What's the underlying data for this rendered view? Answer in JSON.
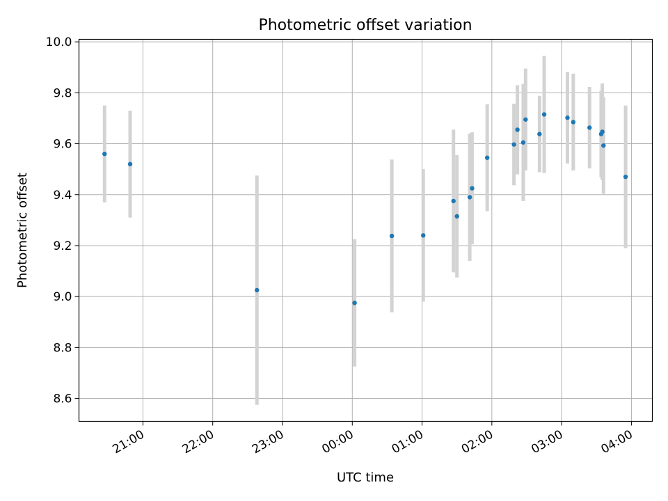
{
  "chart_data": {
    "type": "scatter",
    "title": "Photometric offset variation",
    "xlabel": "UTC time",
    "ylabel": "Photometric offset",
    "xlim": [
      "2000-01-01T20:05",
      "2000-01-02T04:18"
    ],
    "ylim": [
      8.51,
      10.01
    ],
    "x_ticks": [
      "21:00",
      "22:00",
      "23:00",
      "00:00",
      "01:00",
      "02:00",
      "03:00",
      "04:00"
    ],
    "y_ticks": [
      "8.6",
      "8.8",
      "9.0",
      "9.2",
      "9.4",
      "9.6",
      "9.8",
      "10.0"
    ],
    "grid": true,
    "series": [
      {
        "marker_color": "#1f77b4",
        "errorbar_color": "#d3d3d3",
        "points": [
          {
            "x": "2000-01-01T20:27",
            "y": 9.56,
            "yerr": 0.19
          },
          {
            "x": "2000-01-01T20:49",
            "y": 9.52,
            "yerr": 0.21
          },
          {
            "x": "2000-01-01T22:38",
            "y": 9.025,
            "yerr": 0.45
          },
          {
            "x": "2000-01-02T00:02",
            "y": 8.975,
            "yerr": 0.25
          },
          {
            "x": "2000-01-02T00:34",
            "y": 9.238,
            "yerr": 0.3
          },
          {
            "x": "2000-01-02T01:01",
            "y": 9.24,
            "yerr": 0.26
          },
          {
            "x": "2000-01-02T01:27",
            "y": 9.375,
            "yerr": 0.28
          },
          {
            "x": "2000-01-02T01:30",
            "y": 9.315,
            "yerr": 0.24
          },
          {
            "x": "2000-01-02T01:41",
            "y": 9.39,
            "yerr": 0.25
          },
          {
            "x": "2000-01-02T01:43",
            "y": 9.425,
            "yerr": 0.22
          },
          {
            "x": "2000-01-02T01:56",
            "y": 9.545,
            "yerr": 0.21
          },
          {
            "x": "2000-01-02T02:19",
            "y": 9.597,
            "yerr": 0.16
          },
          {
            "x": "2000-01-02T02:22",
            "y": 9.655,
            "yerr": 0.175
          },
          {
            "x": "2000-01-02T02:27",
            "y": 9.605,
            "yerr": 0.23
          },
          {
            "x": "2000-01-02T02:29",
            "y": 9.695,
            "yerr": 0.2
          },
          {
            "x": "2000-01-02T02:41",
            "y": 9.638,
            "yerr": 0.15
          },
          {
            "x": "2000-01-02T02:45",
            "y": 9.715,
            "yerr": 0.23
          },
          {
            "x": "2000-01-02T03:05",
            "y": 9.702,
            "yerr": 0.18
          },
          {
            "x": "2000-01-02T03:10",
            "y": 9.685,
            "yerr": 0.19
          },
          {
            "x": "2000-01-02T03:24",
            "y": 9.663,
            "yerr": 0.16
          },
          {
            "x": "2000-01-02T03:34",
            "y": 9.638,
            "yerr": 0.17
          },
          {
            "x": "2000-01-02T03:35",
            "y": 9.647,
            "yerr": 0.19
          },
          {
            "x": "2000-01-02T03:36",
            "y": 9.593,
            "yerr": 0.19
          },
          {
            "x": "2000-01-02T03:55",
            "y": 9.47,
            "yerr": 0.28
          }
        ]
      }
    ]
  }
}
